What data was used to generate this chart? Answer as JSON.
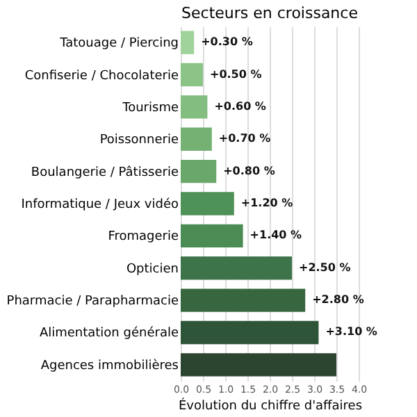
{
  "chart_data": {
    "type": "bar",
    "orientation": "horizontal",
    "title": "Secteurs en croissance",
    "xlabel": "Évolution du chiffre d'affaires",
    "categories": [
      "Tatouage / Piercing",
      "Confiserie / Chocolaterie",
      "Tourisme",
      "Poissonnerie",
      "Boulangerie / Pâtisserie",
      "Informatique / Jeux vidéo",
      "Fromagerie",
      "Opticien",
      "Pharmacie / Parapharmacie",
      "Alimentation générale",
      "Agences immobilières"
    ],
    "values": [
      0.3,
      0.5,
      0.6,
      0.7,
      0.8,
      1.2,
      1.4,
      2.5,
      2.8,
      3.1,
      3.5
    ],
    "value_labels": [
      "+0.30 %",
      "+0.50 %",
      "+0.60 %",
      "+0.70 %",
      "+0.80 %",
      "+1.20 %",
      "+1.40 %",
      "+2.50 %",
      "+2.80 %",
      "+3.10 %",
      null
    ],
    "colors": [
      "#a0d29b",
      "#8cc488",
      "#83bd80",
      "#74b173",
      "#69a86a",
      "#4f9258",
      "#4b8c55",
      "#3d7449",
      "#37663f",
      "#2f5538",
      "#2c4530"
    ],
    "xlim": [
      0,
      4
    ],
    "xticks": [
      {
        "value": 0,
        "label": "0.0"
      },
      {
        "value": 0.5,
        "label": "0.5"
      },
      {
        "value": 1,
        "label": "1.0"
      },
      {
        "value": 1.5,
        "label": "1.5"
      },
      {
        "value": 2,
        "label": "2.0"
      },
      {
        "value": 2.5,
        "label": "2.5"
      },
      {
        "value": 3,
        "label": "3.0"
      },
      {
        "value": 3.5,
        "label": "3.5"
      },
      {
        "value": 4,
        "label": "4.0"
      }
    ],
    "grid": "x"
  }
}
